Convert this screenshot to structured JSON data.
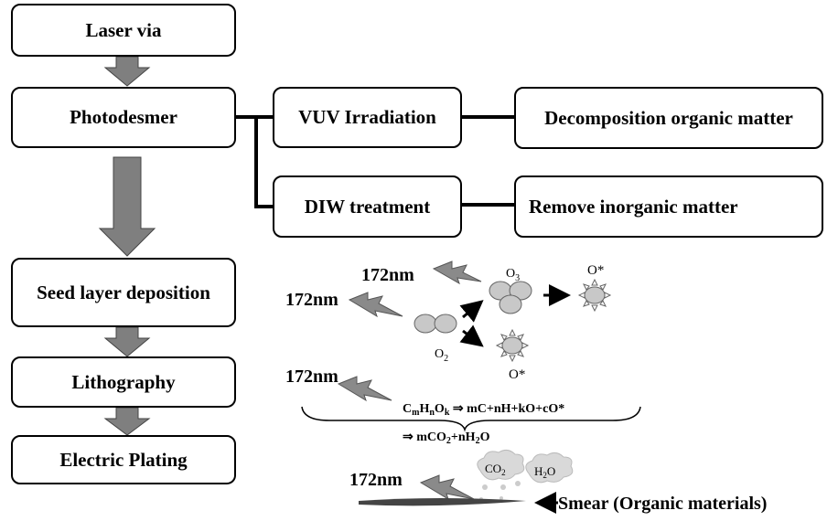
{
  "flow": {
    "steps": [
      "Laser via",
      "Photodesmer",
      "Seed layer deposition",
      "Lithography",
      "Electric Plating"
    ],
    "branches": [
      "VUV Irradiation",
      "DIW treatment"
    ],
    "results": [
      "Decomposition organic matter",
      "Remove inorganic matter"
    ]
  },
  "mechanism": {
    "wavelength": "172nm",
    "o2": "O2",
    "o3": "O3",
    "o_radical": "O*",
    "reaction1": "CmHnOk ⇒ mC+nH+kO+cO*",
    "reaction2": "⇒ mCO2+nH2O",
    "co2": "CO2",
    "h2o": "H2O",
    "smear": "Smear (Organic  materials)"
  },
  "colors": {
    "arrow_fill": "#7f7f7f",
    "molecule_fill": "#c8c8c8",
    "cloud_fill": "#d9d9d9"
  }
}
